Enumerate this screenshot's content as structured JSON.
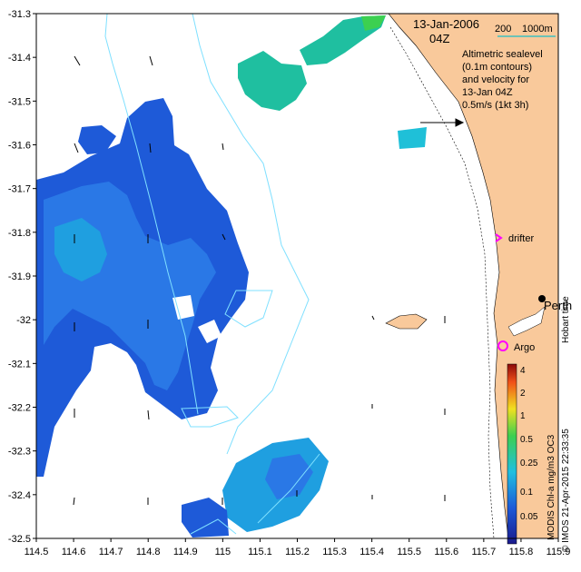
{
  "map": {
    "date_label": "13-Jan-2006",
    "time_label": "04Z",
    "scale_label_200": "200",
    "scale_label_1000": "1000m",
    "legend_lines": [
      "Altimetric sealevel",
      "(0.1m contours)",
      "and velocity for",
      "13-Jan 04Z",
      "0.5m/s (1kt 3h)"
    ],
    "drifter_label": "drifter",
    "argo_label": "Argo",
    "city_label": "Perth",
    "hobart_time": "Hobart time",
    "product_label": "MODIS Chl-a mg/m3 OC3",
    "credit_label": "© IMOS 21-Apr-2015 22:33:35",
    "x_ticks": [
      "114.5",
      "114.6",
      "114.7",
      "114.8",
      "114.9",
      "115",
      "115.1",
      "115.2",
      "115.3",
      "115.4",
      "115.5",
      "115.6",
      "115.7",
      "115.8",
      "115.9"
    ],
    "y_ticks": [
      "-31.3",
      "-31.4",
      "-31.5",
      "-31.6",
      "-31.7",
      "-31.8",
      "-31.9",
      "-32",
      "-32.1",
      "-32.2",
      "-32.3",
      "-32.4",
      "-32.5"
    ],
    "colorbar_ticks": [
      "4",
      "2",
      "1",
      "0.5",
      "0.25",
      "0.1",
      "0.05"
    ],
    "colors": {
      "land": "#f9c99b",
      "low_chl": "#1e5ad8",
      "mid_chl": "#1f9fe0",
      "high_chl": "#1fbfa0",
      "accent": "#ff00ff",
      "contour": "#7fe0ff"
    }
  }
}
